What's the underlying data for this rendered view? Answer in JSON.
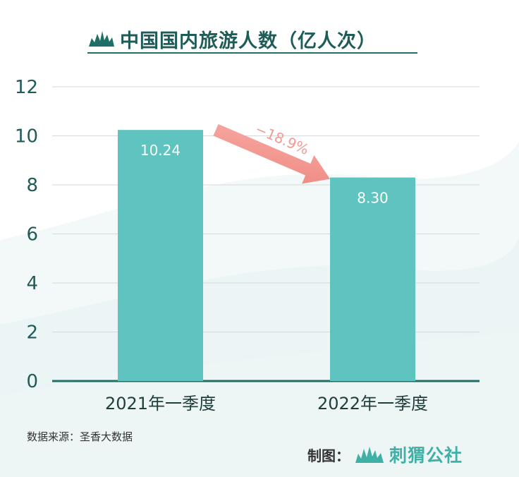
{
  "header": {
    "title": "中国国内旅游人数（亿人次）",
    "logo_icon": "hedgehog-leaf-icon"
  },
  "chart_data": {
    "type": "bar",
    "categories": [
      "2021年一季度",
      "2022年一季度"
    ],
    "values": [
      10.24,
      8.3
    ],
    "value_labels": [
      "10.24",
      "8.30"
    ],
    "ylim": [
      0,
      12
    ],
    "yticks": [
      "0",
      "2",
      "4",
      "6",
      "8",
      "10",
      "12"
    ],
    "grid": true,
    "bar_color": "#5fc4c0",
    "annotation": {
      "text": "−18.9%",
      "from": "2021年一季度",
      "to": "2022年一季度",
      "color": "#f29b95"
    }
  },
  "footer": {
    "source": "数据来源：圣香大数据",
    "credit_label": "制图：",
    "credit_brand": "刺猬公社",
    "credit_icon": "hedgehog-leaf-icon",
    "brand_color": "#3fb0a6"
  }
}
